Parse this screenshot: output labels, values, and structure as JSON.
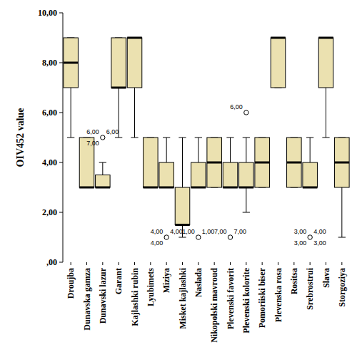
{
  "chart_data": {
    "type": "boxplot",
    "y_label": "OIV452 value",
    "color": "#ebe1b0",
    "ylim": [
      0,
      10
    ],
    "yticks": [
      {
        "value": 0,
        "label": ",00"
      },
      {
        "value": 2,
        "label": "2,00"
      },
      {
        "value": 4,
        "label": "4,00"
      },
      {
        "value": 6,
        "label": "6,00"
      },
      {
        "value": 8,
        "label": "8,00"
      },
      {
        "value": 10,
        "label": "10,00"
      }
    ],
    "categories": [
      "Droujba",
      "Dunavska gamza",
      "Dunavski lazur",
      "Garant",
      "Kajlashki rubin",
      "Lyubimets",
      "Miziya",
      "Misket kajlashki",
      "Naslada",
      "Nikopolski mavroud",
      "Plevenski favorit",
      "Plevenski kolorite",
      "Pomoriiski biser",
      "Plevenska rosa",
      "Rositsa",
      "Srebrostrui",
      "Slava",
      "Storgoziya"
    ],
    "boxes": [
      {
        "min": 5,
        "q1": 7,
        "median": 8,
        "q3": 9,
        "max": 9,
        "outliers": []
      },
      {
        "min": 3,
        "q1": 3,
        "median": 3,
        "q3": 5,
        "max": 5,
        "outliers": []
      },
      {
        "min": 3,
        "q1": 3,
        "median": 3,
        "q3": 3.5,
        "max": 4,
        "outliers": [
          {
            "value": 5,
            "labels": [
              "6,00",
              "6,00",
              "7,00"
            ]
          }
        ]
      },
      {
        "min": 5,
        "q1": 7,
        "median": 7,
        "q3": 9,
        "max": 9,
        "outliers": []
      },
      {
        "min": 5,
        "q1": 7,
        "median": 9,
        "q3": 9,
        "max": 9,
        "outliers": []
      },
      {
        "min": 3,
        "q1": 3,
        "median": 3,
        "q3": 5,
        "max": 5,
        "outliers": []
      },
      {
        "min": 3,
        "q1": 3,
        "median": 3,
        "q3": 4,
        "max": 5,
        "outliers": [
          {
            "value": 1,
            "labels": [
              "4,00",
              "4,00",
              "4,00"
            ]
          }
        ]
      },
      {
        "min": 1,
        "q1": 1.5,
        "median": 1.5,
        "q3": 3,
        "max": 5,
        "outliers": []
      },
      {
        "min": 3,
        "q1": 3,
        "median": 3,
        "q3": 4,
        "max": 5,
        "outliers": [
          {
            "value": 1,
            "labels": [
              "1,00",
              "1,00"
            ]
          }
        ]
      },
      {
        "min": 3,
        "q1": 3,
        "median": 4,
        "q3": 5,
        "max": 5,
        "outliers": []
      },
      {
        "min": 3,
        "q1": 3,
        "median": 3,
        "q3": 4,
        "max": 5,
        "outliers": [
          {
            "value": 1,
            "labels": [
              "7,00",
              "7,00"
            ]
          }
        ]
      },
      {
        "min": 2,
        "q1": 3,
        "median": 3,
        "q3": 4,
        "max": 5,
        "outliers": [
          {
            "value": 6,
            "labels": [
              "6,00"
            ]
          }
        ]
      },
      {
        "min": 3,
        "q1": 3,
        "median": 4,
        "q3": 5,
        "max": 5,
        "outliers": []
      },
      {
        "min": 7,
        "q1": 7,
        "median": 9,
        "q3": 9,
        "max": 9,
        "outliers": []
      },
      {
        "min": 3,
        "q1": 3,
        "median": 4,
        "q3": 5,
        "max": 5,
        "outliers": []
      },
      {
        "min": 3,
        "q1": 3,
        "median": 3,
        "q3": 4,
        "max": 5,
        "outliers": [
          {
            "value": 1,
            "labels": [
              "3,00",
              "4,00",
              "3,00",
              "3,00"
            ]
          }
        ]
      },
      {
        "min": 5,
        "q1": 7,
        "median": 9,
        "q3": 9,
        "max": 9,
        "outliers": []
      },
      {
        "min": 1,
        "q1": 3,
        "median": 4,
        "q3": 5,
        "max": 5,
        "outliers": []
      }
    ]
  }
}
